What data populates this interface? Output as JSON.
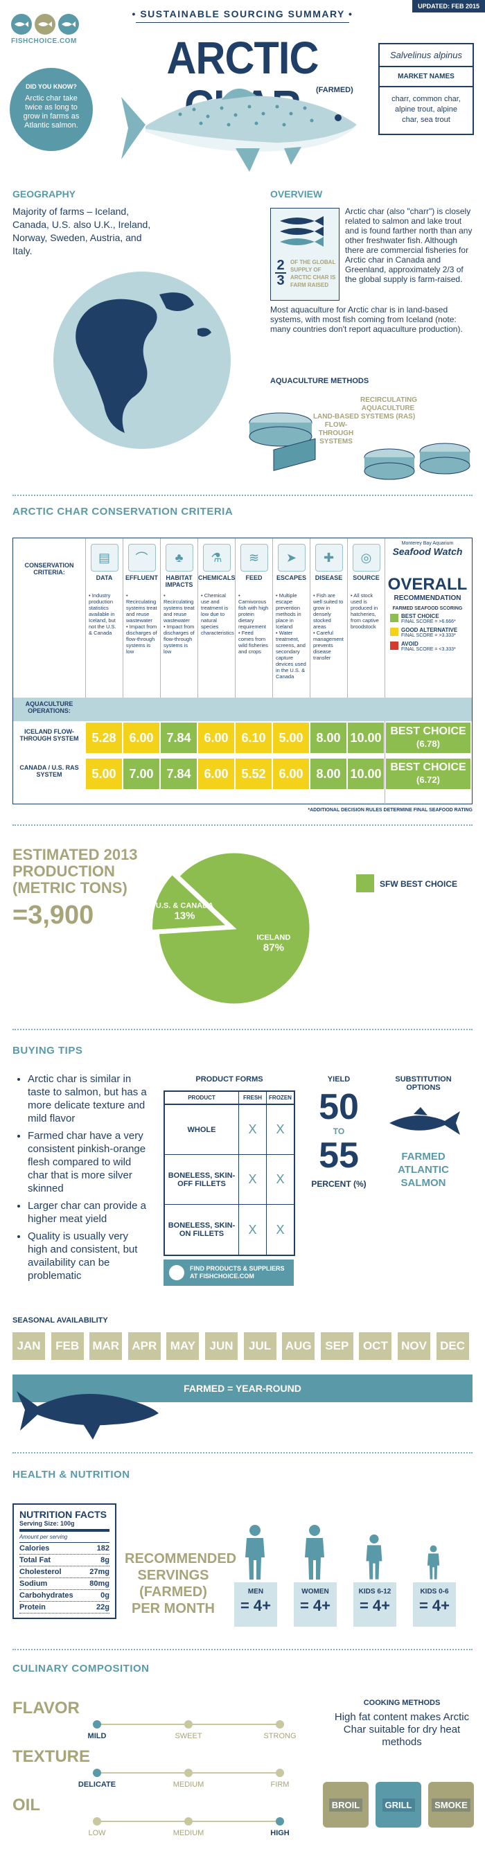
{
  "header": {
    "updated": "UPDATED: FEB 2015",
    "logo_text": "FISHCHOICE.COM",
    "subtitle": "• SUSTAINABLE SOURCING SUMMARY •",
    "title": "ARCTIC CHAR",
    "farmed": "(FARMED)",
    "did_you_know_label": "DID YOU KNOW?",
    "did_you_know_text": "Arctic char take twice as long to grow in farms as Atlantic salmon.",
    "scientific_name": "Salvelinus alpinus",
    "market_names_label": "MARKET NAMES",
    "market_names": "charr, common char, alpine trout, alpine char, sea trout"
  },
  "geography": {
    "title": "GEOGRAPHY",
    "text": "Majority of farms – Iceland, Canada, U.S. also U.K., Ireland, Norway, Sweden, Austria, and Italy."
  },
  "overview": {
    "title": "OVERVIEW",
    "stat_num_top": "2",
    "stat_num_bottom": "3",
    "stat_text": "OF THE GLOBAL SUPPLY OF ARCTIC CHAR IS FARM RAISED",
    "text": "Arctic char (also \"charr\") is closely related to salmon and lake trout and is found farther north than any other freshwater fish. Although there are commercial fisheries for Arctic char in Canada and Greenland, approximately 2/3 of the global supply is farm-raised.",
    "text2": "Most aquaculture for Arctic char is in land-based systems, with most fish coming from Iceland (note: many countries don't report aquaculture production).",
    "methods_title": "AQUACULTURE METHODS",
    "method1": "LAND-BASED FLOW-THROUGH SYSTEMS",
    "method2": "RECIRCULATING AQUACULTURE SYSTEMS (RAS)"
  },
  "criteria": {
    "title": "ARCTIC CHAR CONSERVATION CRITERIA",
    "row_label": "CONSERVATION CRITERIA:",
    "columns": [
      {
        "name": "DATA",
        "icon": "document-icon",
        "text": "• Industry production statistics available in Iceland, but not the U.S. & Canada"
      },
      {
        "name": "EFFLUENT",
        "icon": "effluent-icon",
        "text": "• Recirculating systems treat and reuse wastewater\n• Impact from discharges of flow-through systems is low"
      },
      {
        "name": "HABITAT IMPACTS",
        "icon": "habitat-icon",
        "text": "• Recirculating systems treat and reuse wastewater\n• Impact from discharges of flow-through systems is low"
      },
      {
        "name": "CHEMICALS",
        "icon": "chemicals-icon",
        "text": "• Chemical use and treatment is low due to natural species characteristics"
      },
      {
        "name": "FEED",
        "icon": "feed-icon",
        "text": "• Carnivorous fish with high protein dietary requirement\n• Feed comes from wild fisheries and crops"
      },
      {
        "name": "ESCAPES",
        "icon": "escapes-icon",
        "text": "• Multiple escape prevention methods in place in Iceland\n• Water treatment, screens, and secondary capture devices used in the U.S. & Canada"
      },
      {
        "name": "DISEASE",
        "icon": "disease-icon",
        "text": "• Fish are well suited to grow in densely stocked areas\n• Careful management prevents disease transfer"
      },
      {
        "name": "SOURCE",
        "icon": "source-icon",
        "text": "• All stock used is produced in hatcheries, from captive broodstock"
      }
    ],
    "ops_label": "AQUACULTURE OPERATIONS:",
    "rows": [
      {
        "label": "ICELAND FLOW-THROUGH SYSTEM",
        "scores": [
          "5.28",
          "6.00",
          "7.84",
          "6.00",
          "6.10",
          "5.00",
          "8.00",
          "10.00"
        ],
        "colors": [
          "y",
          "y",
          "g",
          "y",
          "y",
          "y",
          "g",
          "g"
        ],
        "overall": "BEST CHOICE",
        "overall_score": "(6.78)"
      },
      {
        "label": "CANADA / U.S. RAS SYSTEM",
        "scores": [
          "5.00",
          "7.00",
          "7.84",
          "6.00",
          "5.52",
          "6.00",
          "8.00",
          "10.00"
        ],
        "colors": [
          "y",
          "g",
          "g",
          "y",
          "y",
          "y",
          "g",
          "g"
        ],
        "overall": "BEST CHOICE",
        "overall_score": "(6.72)"
      }
    ],
    "sw_top": "Monterey Bay Aquarium",
    "sw_name": "Seafood Watch",
    "overall_label": "OVERALL",
    "recommendation": "RECOMMENDATION",
    "scoring_title": "FARMED SEAFOOD SCORING",
    "legend": [
      {
        "label": "BEST CHOICE",
        "detail": "FINAL SCORE = >6.666*",
        "color": "#8cbd4e"
      },
      {
        "label": "GOOD ALTERNATIVE",
        "detail": "FINAL SCORE = >3.333*",
        "color": "#f5d21a"
      },
      {
        "label": "AVOID",
        "detail": "FINAL SCORE = <3.333*",
        "color": "#d63a2f"
      }
    ],
    "footnote": "*ADDITIONAL DECISION RULES DETERMINE FINAL SEAFOOD RATING"
  },
  "production": {
    "title": "ESTIMATED 2013 PRODUCTION (METRIC TONS)",
    "value": "=3,900",
    "legend": "SFW BEST CHOICE",
    "chart_data": {
      "type": "pie",
      "slices": [
        {
          "label": "ICELAND",
          "value": 87,
          "text": "87%"
        },
        {
          "label": "U.S. & CANADA",
          "value": 13,
          "text": "13%"
        }
      ]
    }
  },
  "buying": {
    "title": "BUYING TIPS",
    "tips": [
      "Arctic char is similar in taste to salmon, but has a more delicate texture and mild flavor",
      "Farmed char have a very consistent pinkish-orange flesh compared to wild char that is more silver skinned",
      "Larger char can provide a higher meat yield",
      "Quality is usually very high and consistent, but availability can be problematic"
    ],
    "forms_title": "PRODUCT FORMS",
    "forms_headers": [
      "PRODUCT",
      "FRESH",
      "FROZEN"
    ],
    "forms": [
      {
        "name": "WHOLE",
        "fresh": "X",
        "frozen": "X"
      },
      {
        "name": "BONELESS, SKIN-OFF FILLETS",
        "fresh": "X",
        "frozen": "X"
      },
      {
        "name": "BONELESS, SKIN-ON FILLETS",
        "fresh": "X",
        "frozen": "X"
      }
    ],
    "find_button": "FIND PRODUCTS & SUPPLIERS AT FISHCHOICE.COM",
    "yield_title": "YIELD",
    "yield_low": "50",
    "yield_to": "TO",
    "yield_high": "55",
    "yield_unit": "PERCENT (%)",
    "sub_title": "SUBSTITUTION OPTIONS",
    "sub_value": "FARMED ATLANTIC SALMON"
  },
  "seasonal": {
    "title": "SEASONAL AVAILABILITY",
    "months": [
      "JAN",
      "FEB",
      "MAR",
      "APR",
      "MAY",
      "JUN",
      "JUL",
      "AUG",
      "SEP",
      "OCT",
      "NOV",
      "DEC"
    ],
    "bar": "FARMED = YEAR-ROUND"
  },
  "health": {
    "title": "HEALTH & NUTRITION",
    "facts_title": "NUTRITION FACTS",
    "serving": "Serving Size: 100g",
    "per": "Amount per serving",
    "facts": [
      {
        "name": "Calories",
        "value": "182"
      },
      {
        "name": "Total Fat",
        "value": "8g"
      },
      {
        "name": "Cholesterol",
        "value": "27mg"
      },
      {
        "name": "Sodium",
        "value": "80mg"
      },
      {
        "name": "Carbohydrates",
        "value": "0g"
      },
      {
        "name": "Protein",
        "value": "22g"
      }
    ],
    "rec_title": "RECOMMENDED SERVINGS (FARMED) PER MONTH",
    "groups": [
      {
        "label": "MEN",
        "value": "= 4+"
      },
      {
        "label": "WOMEN",
        "value": "= 4+"
      },
      {
        "label": "KIDS 6-12",
        "value": "= 4+"
      },
      {
        "label": "KIDS 0-6",
        "value": "= 4+"
      }
    ]
  },
  "culinary": {
    "title": "CULINARY COMPOSITION",
    "scales": [
      {
        "name": "FLAVOR",
        "ticks": [
          "MILD",
          "SWEET",
          "STRONG"
        ],
        "selected": 0
      },
      {
        "name": "TEXTURE",
        "ticks": [
          "DELICATE",
          "MEDIUM",
          "FIRM"
        ],
        "selected": 0
      },
      {
        "name": "OIL",
        "ticks": [
          "LOW",
          "MEDIUM",
          "HIGH"
        ],
        "selected": 2
      }
    ],
    "cooking_title": "COOKING METHODS",
    "cooking_text": "High fat content makes Arctic Char suitable for dry heat methods",
    "methods": [
      "BROIL",
      "GRILL",
      "SMOKE"
    ]
  }
}
